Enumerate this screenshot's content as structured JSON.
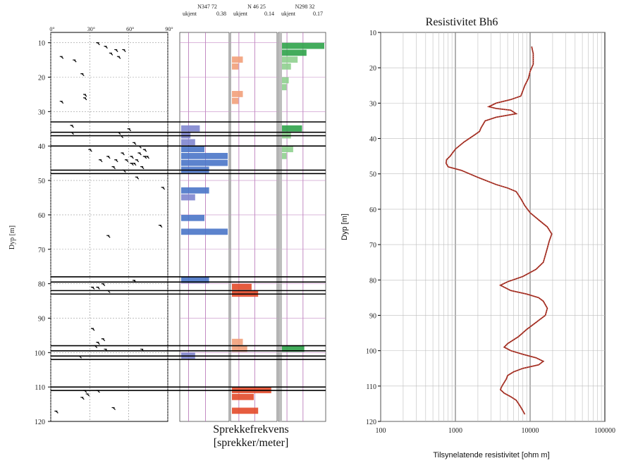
{
  "chart_data": [
    {
      "type": "bar",
      "ylabel": "Dyp [m]",
      "ylim": [
        120,
        7
      ],
      "yticks": [
        10,
        20,
        30,
        40,
        50,
        60,
        70,
        80,
        90,
        100,
        110,
        120
      ],
      "caption_line1": "Sprekkefrekvens",
      "caption_line2": "[sprekker/meter]",
      "dip_panel": {
        "tick_labels": [
          "0°",
          "30°",
          "60°",
          "90°"
        ],
        "dip_ticks": [
          0,
          30,
          60,
          90
        ],
        "grid_h": [
          10,
          20,
          30,
          40,
          50,
          60,
          70,
          80,
          90,
          100,
          110
        ],
        "fracture_zones": [
          [
            33,
            36
          ],
          [
            37,
            40
          ],
          [
            47,
            48
          ],
          [
            78,
            79.5
          ],
          [
            82,
            83
          ],
          [
            98,
            99.5
          ],
          [
            101,
            102
          ],
          [
            110,
            111
          ]
        ],
        "points": [
          [
            8,
            14
          ],
          [
            36,
            10
          ],
          [
            42,
            11
          ],
          [
            50,
            12
          ],
          [
            46,
            13
          ],
          [
            52,
            14
          ],
          [
            56,
            12
          ],
          [
            18,
            15
          ],
          [
            24,
            19
          ],
          [
            26,
            26
          ],
          [
            8,
            27
          ],
          [
            26,
            25
          ],
          [
            16,
            34
          ],
          [
            16,
            36
          ],
          [
            52,
            36
          ],
          [
            60,
            35
          ],
          [
            54,
            37
          ],
          [
            64,
            39
          ],
          [
            30,
            41
          ],
          [
            68,
            40
          ],
          [
            72,
            41
          ],
          [
            38,
            44
          ],
          [
            44,
            43
          ],
          [
            50,
            44
          ],
          [
            48,
            46
          ],
          [
            55,
            42
          ],
          [
            58,
            44
          ],
          [
            62,
            43
          ],
          [
            64,
            45
          ],
          [
            66,
            44
          ],
          [
            70,
            46
          ],
          [
            74,
            43
          ],
          [
            56,
            47
          ],
          [
            62,
            45
          ],
          [
            68,
            42
          ],
          [
            72,
            43
          ],
          [
            66,
            49
          ],
          [
            44,
            66
          ],
          [
            64,
            79
          ],
          [
            86,
            52
          ],
          [
            84,
            63
          ],
          [
            32,
            81
          ],
          [
            36,
            81
          ],
          [
            40,
            80
          ],
          [
            44,
            82
          ],
          [
            32,
            93
          ],
          [
            34,
            98
          ],
          [
            36,
            97
          ],
          [
            42,
            99
          ],
          [
            40,
            96
          ],
          [
            70,
            99
          ],
          [
            22,
            101
          ],
          [
            26,
            111
          ],
          [
            28,
            112
          ],
          [
            36,
            111
          ],
          [
            24,
            113
          ],
          [
            48,
            116
          ],
          [
            4,
            117
          ]
        ]
      },
      "series": [
        {
          "name": "N347 72",
          "subtitle": "0.38",
          "subtitle_prefix": "ukjent",
          "color": "#7f86cf",
          "highlight": "#4a76c8",
          "bins": [
            [
              34,
              36,
              0.4
            ],
            [
              36,
              38,
              0.2
            ],
            [
              38,
              40,
              0.3
            ],
            [
              40,
              42,
              0.5
            ],
            [
              42,
              44,
              1.0
            ],
            [
              44,
              46,
              1.0
            ],
            [
              46,
              48,
              0.6
            ],
            [
              52,
              54,
              0.6
            ],
            [
              54,
              56,
              0.3
            ],
            [
              60,
              62,
              0.5
            ],
            [
              64,
              66,
              1.0
            ],
            [
              78,
              80,
              0.6
            ],
            [
              100,
              102,
              0.3
            ]
          ]
        },
        {
          "name": "N 46 25",
          "subtitle": "0.14",
          "subtitle_prefix": "ukjent",
          "color": "#f2a07a",
          "highlight": "#e34a2a",
          "bins": [
            [
              14,
              16,
              0.25
            ],
            [
              16,
              18,
              0.15
            ],
            [
              24,
              26,
              0.25
            ],
            [
              26,
              28,
              0.15
            ],
            [
              80,
              82,
              0.45
            ],
            [
              82,
              84,
              0.6
            ],
            [
              96,
              98,
              0.25
            ],
            [
              98,
              100,
              0.35
            ],
            [
              110,
              112,
              0.9
            ],
            [
              112,
              114,
              0.5
            ],
            [
              116,
              118,
              0.6
            ]
          ]
        },
        {
          "name": "N298 32",
          "subtitle": "0.17",
          "subtitle_prefix": "ukjent",
          "color": "#8fd08f",
          "highlight": "#2fa34a",
          "bins": [
            [
              10,
              12,
              1.0
            ],
            [
              12,
              14,
              0.6
            ],
            [
              14,
              16,
              0.4
            ],
            [
              16,
              18,
              0.25
            ],
            [
              20,
              22,
              0.2
            ],
            [
              22,
              24,
              0.15
            ],
            [
              34,
              36,
              0.5
            ],
            [
              36,
              38,
              0.25
            ],
            [
              40,
              42,
              0.3
            ],
            [
              42,
              44,
              0.15
            ],
            [
              98,
              100,
              0.55
            ]
          ]
        }
      ]
    },
    {
      "type": "line",
      "title": "Resistivitet Bh6",
      "xlabel": "Tilsynelatende resistivitet [ohm m]",
      "ylabel": "Dyp [m]",
      "xscale": "log",
      "xlim": [
        100,
        100000
      ],
      "ylim": [
        120,
        10
      ],
      "xticks": [
        100,
        1000,
        10000,
        100000
      ],
      "yticks": [
        10,
        20,
        30,
        40,
        50,
        60,
        70,
        80,
        90,
        100,
        110,
        120
      ],
      "grid": true,
      "series": [
        {
          "color": "#c0392b",
          "points": [
            [
              10500,
              14
            ],
            [
              11000,
              16
            ],
            [
              11000,
              19
            ],
            [
              10000,
              21
            ],
            [
              9500,
              23
            ],
            [
              8500,
              25
            ],
            [
              7500,
              28
            ],
            [
              5500,
              29
            ],
            [
              3500,
              30
            ],
            [
              2800,
              31
            ],
            [
              3500,
              31.5
            ],
            [
              5500,
              32
            ],
            [
              6500,
              33
            ],
            [
              3500,
              34
            ],
            [
              2500,
              35
            ],
            [
              2200,
              37
            ],
            [
              2100,
              38
            ],
            [
              1800,
              39
            ],
            [
              1300,
              41
            ],
            [
              1000,
              43
            ],
            [
              850,
              45
            ],
            [
              760,
              46
            ],
            [
              750,
              47
            ],
            [
              800,
              48
            ],
            [
              1200,
              49
            ],
            [
              2000,
              51
            ],
            [
              3500,
              53
            ],
            [
              5000,
              54
            ],
            [
              6500,
              55
            ],
            [
              7500,
              57
            ],
            [
              8500,
              59
            ],
            [
              10000,
              61
            ],
            [
              13000,
              63
            ],
            [
              17000,
              65
            ],
            [
              19500,
              67
            ],
            [
              18000,
              69
            ],
            [
              17000,
              71
            ],
            [
              16000,
              73
            ],
            [
              15000,
              75
            ],
            [
              12000,
              77
            ],
            [
              8000,
              79
            ],
            [
              5000,
              80.5
            ],
            [
              4000,
              81.5
            ],
            [
              5500,
              83
            ],
            [
              9000,
              84
            ],
            [
              13000,
              85
            ],
            [
              15000,
              86
            ],
            [
              17000,
              88
            ],
            [
              16000,
              90
            ],
            [
              12000,
              92
            ],
            [
              9000,
              94
            ],
            [
              7000,
              96
            ],
            [
              5000,
              98
            ],
            [
              4500,
              99
            ],
            [
              5500,
              100
            ],
            [
              8000,
              101
            ],
            [
              12000,
              102
            ],
            [
              15000,
              103
            ],
            [
              13000,
              104
            ],
            [
              8000,
              105
            ],
            [
              6000,
              106
            ],
            [
              5000,
              107
            ],
            [
              4800,
              108
            ],
            [
              4200,
              110
            ],
            [
              4000,
              111
            ],
            [
              4500,
              112
            ],
            [
              5500,
              113
            ],
            [
              6500,
              114
            ],
            [
              7000,
              115
            ],
            [
              7500,
              116
            ],
            [
              8000,
              117
            ],
            [
              8500,
              118
            ]
          ]
        }
      ]
    }
  ]
}
